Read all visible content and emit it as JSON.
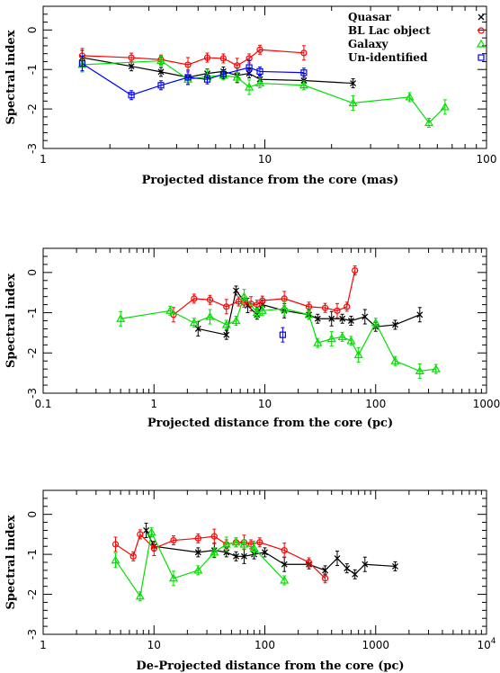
{
  "chart_data": [
    {
      "type": "line",
      "xscale": "log",
      "xlim": [
        1,
        100
      ],
      "ylim": [
        -3,
        0.6
      ],
      "xticks": [
        "1",
        "10",
        "100"
      ],
      "yticks": [
        "0",
        "-1",
        "-2",
        "-3"
      ],
      "xlabel": "Projected distance from the core (mas)",
      "ylabel": "Spectral index",
      "legend": [
        {
          "label": "Quasar",
          "color": "#000000",
          "marker": "x"
        },
        {
          "label": "BL Lac object",
          "color": "#ff0000",
          "marker": "o"
        },
        {
          "label": "Galaxy",
          "color": "#00e000",
          "marker": "triangle"
        },
        {
          "label": "Un-identified",
          "color": "#0000ff",
          "marker": "square"
        }
      ],
      "series": [
        {
          "key": "quasar",
          "color": "#000000",
          "marker": "x",
          "x": [
            1.5,
            2.5,
            3.4,
            4.5,
            5.5,
            6.5,
            7.5,
            8.5,
            9.5,
            15,
            25
          ],
          "y": [
            -0.7,
            -0.92,
            -1.06,
            -1.2,
            -1.1,
            -1.05,
            -1.15,
            -1.1,
            -1.25,
            -1.28,
            -1.35
          ]
        },
        {
          "key": "bllac",
          "color": "#ff0000",
          "marker": "o",
          "x": [
            1.5,
            2.5,
            3.4,
            4.5,
            5.5,
            6.5,
            7.5,
            8.5,
            9.5,
            15
          ],
          "y": [
            -0.65,
            -0.7,
            -0.75,
            -0.88,
            -0.7,
            -0.72,
            -0.9,
            -0.72,
            -0.5,
            -0.58
          ]
        },
        {
          "key": "galaxy",
          "color": "#00e000",
          "marker": "triangle",
          "x": [
            1.5,
            3.4,
            4.5,
            5.5,
            6.5,
            7.5,
            8.5,
            9.5,
            15,
            25,
            45,
            55,
            65
          ],
          "y": [
            -0.88,
            -0.78,
            -1.25,
            -1.18,
            -1.15,
            -1.2,
            -1.45,
            -1.35,
            -1.4,
            -1.85,
            -1.7,
            -2.35,
            -1.95
          ]
        },
        {
          "key": "unidentified",
          "color": "#0000ff",
          "marker": "square",
          "x": [
            1.5,
            2.5,
            3.4,
            4.5,
            5.5,
            6.5,
            8.5,
            9.5,
            15
          ],
          "y": [
            -0.85,
            -1.65,
            -1.4,
            -1.2,
            -1.25,
            -1.12,
            -0.95,
            -1.05,
            -1.08
          ]
        }
      ]
    },
    {
      "type": "line",
      "xscale": "log",
      "xlim": [
        0.1,
        1000
      ],
      "ylim": [
        -3,
        0.6
      ],
      "xticks": [
        "0.1",
        "1",
        "10",
        "100",
        "1000"
      ],
      "yticks": [
        "0",
        "-1",
        "-2",
        "-3"
      ],
      "xlabel": "Projected distance from the core (pc)",
      "ylabel": "Spectral index",
      "series": [
        {
          "key": "quasar",
          "color": "#000000",
          "marker": "x",
          "x": [
            2.5,
            4.5,
            5.5,
            7,
            8.5,
            9.5,
            15,
            25,
            30,
            40,
            50,
            60,
            80,
            100,
            150,
            250
          ],
          "y": [
            -1.4,
            -1.55,
            -0.45,
            -0.82,
            -1.05,
            -0.8,
            -0.95,
            -1.05,
            -1.15,
            -1.15,
            -1.15,
            -1.2,
            -1.1,
            -1.35,
            -1.3,
            -1.05
          ]
        },
        {
          "key": "bllac",
          "color": "#ff0000",
          "marker": "o",
          "x": [
            1.5,
            2.3,
            3.2,
            4.5,
            5.8,
            6.5,
            7.5,
            8.5,
            9.5,
            15,
            25,
            35,
            45,
            55,
            65
          ],
          "y": [
            -1.05,
            -0.65,
            -0.68,
            -0.85,
            -0.72,
            -0.75,
            -0.78,
            -0.8,
            -0.7,
            -0.65,
            -0.85,
            -0.88,
            -0.95,
            -0.85,
            0.05
          ]
        },
        {
          "key": "galaxy",
          "color": "#00e000",
          "marker": "triangle",
          "x": [
            0.5,
            1.4,
            2.3,
            3.2,
            4.5,
            5.5,
            6.5,
            8.5,
            9.5,
            15,
            25,
            30,
            40,
            50,
            60,
            70,
            100,
            150,
            250,
            350
          ],
          "y": [
            -1.15,
            -0.95,
            -1.25,
            -1.1,
            -1.3,
            -1.2,
            -0.6,
            -1.0,
            -0.95,
            -0.9,
            -1.05,
            -1.75,
            -1.65,
            -1.6,
            -1.7,
            -2.05,
            -1.25,
            -2.2,
            -2.45,
            -2.4
          ]
        },
        {
          "key": "unidentified",
          "color": "#0000ff",
          "marker": "square",
          "x": [
            14.5
          ],
          "y": [
            -1.55
          ]
        }
      ]
    },
    {
      "type": "line",
      "xscale": "log",
      "xlim": [
        1,
        10000
      ],
      "ylim": [
        -3,
        0.6
      ],
      "xticks": [
        "1",
        "10",
        "100",
        "1000",
        "10"
      ],
      "xtick_superscript": "4",
      "yticks": [
        "0",
        "-1",
        "-2",
        "-3"
      ],
      "xlabel": "De-Projected distance from the core (pc)",
      "ylabel": "Spectral index",
      "series": [
        {
          "key": "quasar",
          "color": "#000000",
          "marker": "x",
          "x": [
            8.5,
            10,
            25,
            35,
            45,
            55,
            65,
            80,
            100,
            150,
            250,
            350,
            450,
            550,
            650,
            800,
            1500
          ],
          "y": [
            -0.4,
            -0.8,
            -0.95,
            -0.9,
            -0.95,
            -1.05,
            -1.05,
            -1.0,
            -0.95,
            -1.25,
            -1.25,
            -1.4,
            -1.1,
            -1.35,
            -1.5,
            -1.25,
            -1.3
          ]
        },
        {
          "key": "bllac",
          "color": "#ff0000",
          "marker": "o",
          "x": [
            4.5,
            6.5,
            7.5,
            10,
            15,
            25,
            35,
            45,
            55,
            65,
            75,
            90,
            150,
            250,
            350
          ],
          "y": [
            -0.75,
            -1.05,
            -0.5,
            -0.85,
            -0.65,
            -0.6,
            -0.55,
            -0.75,
            -0.7,
            -0.7,
            -0.75,
            -0.7,
            -0.9,
            -1.2,
            -1.6
          ]
        },
        {
          "key": "galaxy",
          "color": "#00e000",
          "marker": "triangle",
          "x": [
            4.5,
            7.5,
            9.5,
            15,
            25,
            35,
            45,
            55,
            65,
            80,
            150
          ],
          "y": [
            -1.15,
            -2.05,
            -0.45,
            -1.6,
            -1.4,
            -0.95,
            -0.75,
            -0.7,
            -0.75,
            -0.85,
            -1.65
          ]
        }
      ]
    }
  ]
}
